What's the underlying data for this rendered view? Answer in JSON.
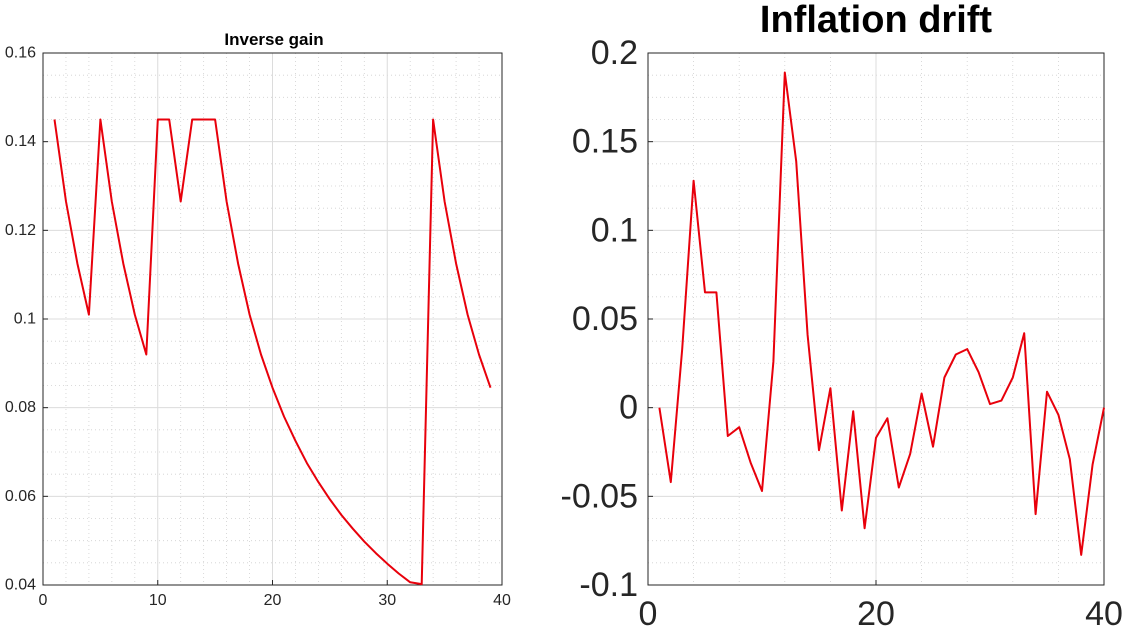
{
  "colors": {
    "line": "#e8000b",
    "axes": "#262626",
    "grid_major": "#dcdcdc",
    "grid_minor": "#d0d0d0",
    "background": "#ffffff"
  },
  "chart_data": [
    {
      "type": "line",
      "title": "Inverse gain",
      "xlabel": "",
      "ylabel": "",
      "xlim": [
        0,
        40
      ],
      "ylim": [
        0.04,
        0.16
      ],
      "xticks": [
        0,
        10,
        20,
        30,
        40
      ],
      "xtick_labels": [
        "0",
        "10",
        "20",
        "30",
        "40"
      ],
      "yticks": [
        0.04,
        0.06,
        0.08,
        0.1,
        0.12,
        0.14,
        0.16
      ],
      "ytick_labels": [
        "0.04",
        "0.06",
        "0.08",
        "0.1",
        "0.12",
        "0.14",
        "0.16"
      ],
      "grid": true,
      "minor_grid": true,
      "series": [
        {
          "x": [
            1,
            2,
            3,
            4,
            5,
            6,
            7,
            8,
            9,
            10,
            11,
            12,
            13,
            14,
            15,
            16,
            17,
            18,
            19,
            20,
            21,
            22,
            23,
            24,
            25,
            26,
            27,
            28,
            29,
            30,
            31,
            32,
            33,
            34,
            35,
            36,
            37,
            38,
            39
          ],
          "values": [
            0.145,
            0.1265,
            0.1125,
            0.101,
            0.145,
            0.1265,
            0.1125,
            0.101,
            0.092,
            0.145,
            0.145,
            0.1265,
            0.145,
            0.145,
            0.145,
            0.1265,
            0.1125,
            0.101,
            0.092,
            0.0845,
            0.078,
            0.0725,
            0.0675,
            0.0632,
            0.0593,
            0.0558,
            0.0527,
            0.0498,
            0.0472,
            0.0448,
            0.0426,
            0.0406,
            0.0402,
            0.145,
            0.1265,
            0.1125,
            0.101,
            0.092,
            0.0845
          ]
        }
      ]
    },
    {
      "type": "line",
      "title": "Inflation drift",
      "xlabel": "",
      "ylabel": "",
      "xlim": [
        0,
        40
      ],
      "ylim": [
        -0.1,
        0.2
      ],
      "xticks": [
        0,
        20,
        40
      ],
      "xtick_labels": [
        "0",
        "20",
        "40"
      ],
      "yticks": [
        -0.1,
        -0.05,
        0,
        0.05,
        0.1,
        0.15,
        0.2
      ],
      "ytick_labels": [
        "-0.1",
        "-0.05",
        "0",
        "0.05",
        "0.1",
        "0.15",
        "0.2"
      ],
      "grid": true,
      "minor_grid": true,
      "series": [
        {
          "x": [
            1,
            2,
            3,
            4,
            5,
            6,
            7,
            8,
            9,
            10,
            11,
            12,
            13,
            14,
            15,
            16,
            17,
            18,
            19,
            20,
            21,
            22,
            23,
            24,
            25,
            26,
            27,
            28,
            29,
            30,
            31,
            32,
            33,
            34,
            35,
            36,
            37,
            38,
            39,
            40
          ],
          "values": [
            0.0,
            -0.042,
            0.033,
            0.128,
            0.065,
            0.065,
            -0.016,
            -0.011,
            -0.031,
            -0.047,
            0.026,
            0.189,
            0.139,
            0.041,
            -0.024,
            0.011,
            -0.058,
            -0.002,
            -0.068,
            -0.017,
            -0.006,
            -0.045,
            -0.026,
            0.008,
            -0.022,
            0.017,
            0.03,
            0.033,
            0.02,
            0.002,
            0.004,
            0.017,
            0.042,
            -0.06,
            0.009,
            -0.004,
            -0.029,
            -0.083,
            -0.032,
            0.0
          ]
        }
      ]
    }
  ]
}
